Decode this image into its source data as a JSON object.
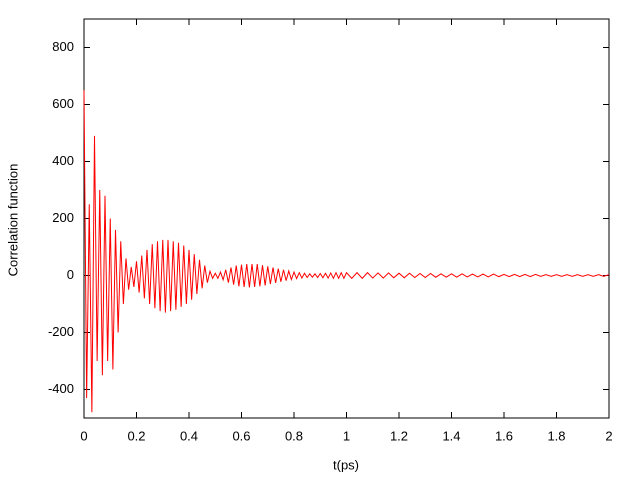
{
  "chart_data": {
    "type": "line",
    "xlabel": "t(ps)",
    "ylabel": "Correlation function",
    "color": "#ff0000",
    "xlim": [
      0,
      2
    ],
    "ylim": [
      -500,
      900
    ],
    "xticks": [
      0,
      0.2,
      0.4,
      0.6,
      0.8,
      1,
      1.2,
      1.4,
      1.6,
      1.8,
      2
    ],
    "yticks": [
      -400,
      -200,
      0,
      200,
      400,
      600,
      800
    ],
    "grid": false,
    "x": [
      0,
      0.01,
      0.02,
      0.03,
      0.04,
      0.05,
      0.06,
      0.07,
      0.08,
      0.09,
      0.1,
      0.11,
      0.12,
      0.13,
      0.14,
      0.15,
      0.16,
      0.17,
      0.18,
      0.19,
      0.2,
      0.21,
      0.22,
      0.23,
      0.24,
      0.25,
      0.26,
      0.27,
      0.28,
      0.29,
      0.3,
      0.31,
      0.32,
      0.33,
      0.34,
      0.35,
      0.36,
      0.37,
      0.38,
      0.39,
      0.4,
      0.41,
      0.42,
      0.43,
      0.44,
      0.45,
      0.46,
      0.47,
      0.48,
      0.49,
      0.5,
      0.51,
      0.52,
      0.53,
      0.54,
      0.55,
      0.56,
      0.57,
      0.58,
      0.59,
      0.6,
      0.61,
      0.62,
      0.63,
      0.64,
      0.65,
      0.66,
      0.67,
      0.68,
      0.69,
      0.7,
      0.71,
      0.72,
      0.73,
      0.74,
      0.75,
      0.76,
      0.77,
      0.78,
      0.79,
      0.8,
      0.81,
      0.82,
      0.83,
      0.84,
      0.85,
      0.86,
      0.87,
      0.88,
      0.89,
      0.9,
      0.91,
      0.92,
      0.93,
      0.94,
      0.95,
      0.96,
      0.97,
      0.98,
      0.99,
      1,
      1.02,
      1.04,
      1.06,
      1.08,
      1.1,
      1.12,
      1.14,
      1.16,
      1.18,
      1.2,
      1.22,
      1.24,
      1.26,
      1.28,
      1.3,
      1.32,
      1.34,
      1.36,
      1.38,
      1.4,
      1.42,
      1.44,
      1.46,
      1.48,
      1.5,
      1.52,
      1.54,
      1.56,
      1.58,
      1.6,
      1.62,
      1.64,
      1.66,
      1.68,
      1.7,
      1.72,
      1.74,
      1.76,
      1.78,
      1.8,
      1.82,
      1.84,
      1.86,
      1.88,
      1.9,
      1.92,
      1.94,
      1.96,
      1.98,
      2
    ],
    "values": [
      650,
      -430,
      250,
      -480,
      490,
      -300,
      300,
      -350,
      280,
      -300,
      200,
      -330,
      160,
      -200,
      120,
      -100,
      60,
      -50,
      30,
      -40,
      50,
      -60,
      70,
      -80,
      90,
      -100,
      110,
      -115,
      120,
      -125,
      125,
      -130,
      125,
      -125,
      120,
      -120,
      115,
      -110,
      105,
      -100,
      90,
      -85,
      75,
      -65,
      55,
      -45,
      35,
      -25,
      15,
      -10,
      8,
      -10,
      12,
      -15,
      20,
      -25,
      28,
      -32,
      35,
      -38,
      38,
      -40,
      40,
      -42,
      40,
      -40,
      40,
      -38,
      36,
      -35,
      32,
      -30,
      28,
      -26,
      24,
      -22,
      20,
      -18,
      16,
      -14,
      12,
      -11,
      10,
      -9,
      8,
      -7,
      6,
      -6,
      6,
      -7,
      7,
      -8,
      8,
      -9,
      9,
      -10,
      10,
      -10,
      10,
      -10,
      10,
      -10,
      10,
      -10,
      10,
      -9,
      9,
      -9,
      9,
      -8,
      8,
      -8,
      8,
      -7,
      7,
      -7,
      7,
      -6,
      6,
      -6,
      6,
      -6,
      6,
      -5,
      5,
      -5,
      5,
      -5,
      5,
      -4,
      4,
      -4,
      4,
      -4,
      4,
      -4,
      4,
      -3,
      3,
      -3,
      3,
      -3,
      3,
      -3,
      3,
      -3,
      3,
      -3,
      3,
      -3,
      3
    ]
  }
}
